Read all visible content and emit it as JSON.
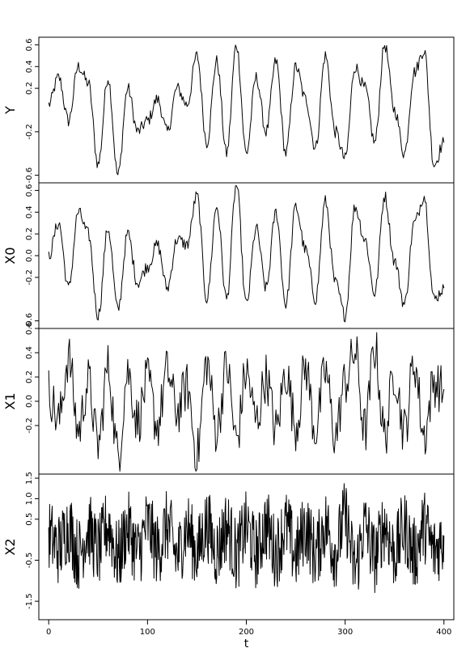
{
  "chart_data": {
    "type": "line",
    "x_label": "t",
    "x_ticks": [
      0,
      100,
      200,
      300,
      400
    ],
    "x_range": [
      -10,
      410
    ],
    "panels": [
      {
        "name": "Y",
        "y_ticks": [
          0.6,
          0.4,
          0.2,
          -0.2,
          -0.6
        ],
        "y_tick_labels": [
          "0.6",
          "0.4",
          "0.2",
          "-0.2",
          "-0.6"
        ],
        "y_range": [
          -0.67,
          0.67
        ],
        "style": "smooth",
        "series": {
          "x": [
            0,
            10,
            20,
            30,
            40,
            50,
            60,
            70,
            80,
            90,
            100,
            110,
            120,
            130,
            140,
            150,
            160,
            170,
            180,
            190,
            200,
            210,
            220,
            230,
            240,
            250,
            260,
            270,
            280,
            290,
            300,
            310,
            320,
            330,
            340,
            350,
            360,
            370,
            380,
            390,
            400
          ],
          "y": [
            0.05,
            0.3,
            -0.1,
            0.4,
            0.25,
            -0.5,
            0.3,
            -0.6,
            0.2,
            -0.2,
            -0.1,
            0.1,
            -0.2,
            0.2,
            0.05,
            0.5,
            -0.3,
            0.45,
            -0.4,
            0.6,
            -0.4,
            0.3,
            -0.2,
            0.45,
            -0.4,
            0.4,
            0.1,
            -0.35,
            0.5,
            -0.2,
            -0.45,
            0.4,
            0.2,
            -0.3,
            0.6,
            0.0,
            -0.4,
            0.35,
            0.55,
            -0.5,
            -0.3
          ]
        }
      },
      {
        "name": "X0",
        "y_ticks": [
          0.6,
          0.4,
          0.2,
          0.0,
          -0.2,
          -0.6
        ],
        "y_tick_labels": [
          "0.6",
          "0.4",
          "0.2",
          "0.0",
          "-0.2",
          "-0.6"
        ],
        "y_range": [
          -0.67,
          0.67
        ],
        "style": "smooth",
        "series": {
          "x": [
            0,
            10,
            20,
            30,
            40,
            50,
            60,
            70,
            80,
            90,
            100,
            110,
            120,
            130,
            140,
            150,
            160,
            170,
            180,
            190,
            200,
            210,
            220,
            230,
            240,
            250,
            260,
            270,
            280,
            290,
            300,
            310,
            320,
            330,
            340,
            350,
            360,
            370,
            380,
            390,
            400
          ],
          "y": [
            0.0,
            0.3,
            -0.3,
            0.4,
            0.2,
            -0.55,
            0.25,
            -0.5,
            0.2,
            -0.25,
            -0.1,
            0.1,
            -0.3,
            0.15,
            0.1,
            0.55,
            -0.4,
            0.45,
            -0.4,
            0.65,
            -0.45,
            0.25,
            -0.3,
            0.4,
            -0.45,
            0.45,
            0.05,
            -0.4,
            0.5,
            -0.25,
            -0.55,
            0.45,
            0.15,
            -0.35,
            0.55,
            -0.05,
            -0.45,
            0.3,
            0.55,
            -0.4,
            -0.3
          ]
        }
      },
      {
        "name": "X1",
        "y_ticks": [
          0.6,
          0.4,
          0.2,
          0.0,
          -0.2
        ],
        "y_tick_labels": [
          "0.6",
          "0.4",
          "0.2",
          "0.0",
          "-0.2"
        ],
        "y_range": [
          -0.6,
          0.6
        ],
        "style": "rough",
        "series": {
          "x": [
            0,
            10,
            20,
            30,
            40,
            50,
            60,
            70,
            80,
            90,
            100,
            110,
            120,
            130,
            140,
            150,
            160,
            170,
            180,
            190,
            200,
            210,
            220,
            230,
            240,
            250,
            260,
            270,
            280,
            290,
            300,
            310,
            320,
            330,
            340,
            350,
            360,
            370,
            380,
            390,
            400
          ],
          "y": [
            0.1,
            -0.2,
            0.45,
            -0.3,
            0.2,
            -0.45,
            0.35,
            -0.55,
            0.3,
            -0.2,
            0.2,
            -0.25,
            0.3,
            -0.1,
            0.15,
            -0.55,
            0.4,
            -0.3,
            0.35,
            -0.4,
            0.3,
            -0.2,
            0.25,
            -0.3,
            0.3,
            -0.25,
            0.35,
            -0.3,
            0.3,
            -0.35,
            0.2,
            0.5,
            -0.3,
            0.55,
            -0.35,
            0.3,
            -0.3,
            0.4,
            -0.35,
            0.2,
            0.1
          ]
        }
      },
      {
        "name": "X2",
        "y_ticks": [
          1.5,
          1.0,
          0.5,
          -0.5,
          -1.5
        ],
        "y_tick_labels": [
          "1.5",
          "1.0",
          "0.5",
          "-0.5",
          "-1.5"
        ],
        "y_range": [
          -1.95,
          1.6
        ],
        "style": "noise",
        "series": {
          "x": [
            0,
            10,
            20,
            30,
            40,
            50,
            60,
            70,
            80,
            90,
            100,
            110,
            120,
            130,
            140,
            150,
            160,
            170,
            180,
            190,
            200,
            210,
            220,
            230,
            240,
            250,
            260,
            270,
            280,
            290,
            300,
            310,
            320,
            330,
            340,
            350,
            360,
            370,
            380,
            390,
            400
          ],
          "y": [
            0.3,
            -0.6,
            0.9,
            -1.0,
            0.7,
            -0.8,
            1.0,
            -1.2,
            0.8,
            -0.9,
            1.0,
            -0.7,
            0.9,
            -1.1,
            0.8,
            -0.9,
            1.0,
            -0.8,
            0.9,
            -1.0,
            0.8,
            -0.9,
            1.0,
            -0.8,
            0.9,
            -1.0,
            0.8,
            -0.9,
            1.0,
            -0.8,
            1.5,
            -1.9,
            0.9,
            -1.2,
            1.0,
            -0.9,
            0.8,
            -1.0,
            0.9,
            -0.8,
            0.1
          ]
        }
      }
    ]
  }
}
